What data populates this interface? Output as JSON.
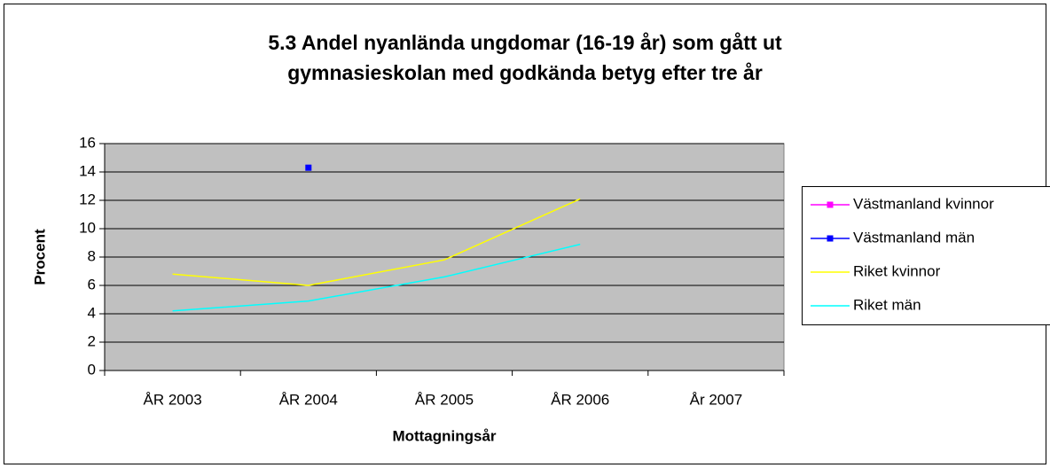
{
  "chart_data": {
    "type": "line",
    "title": [
      "5.3 Andel nyanlända ungdomar (16-19 år) som gått ut",
      "gymnasieskolan med godkända betyg efter tre år"
    ],
    "x_label": "Mottagningsår",
    "y_label": "Procent",
    "categories": [
      "ÅR 2003",
      "ÅR 2004",
      "ÅR 2005",
      "ÅR 2006",
      "År 2007"
    ],
    "series": [
      {
        "name": "Västmanland kvinnor",
        "color": "#ff00ff",
        "marker": "square",
        "values": [
          null,
          null,
          null,
          null,
          null
        ]
      },
      {
        "name": "Västmanland män",
        "color": "#0000ff",
        "marker": "square",
        "values": [
          null,
          14.3,
          null,
          null,
          null
        ]
      },
      {
        "name": "Riket kvinnor",
        "color": "#ffff00",
        "values": [
          6.8,
          6.0,
          7.8,
          12.1,
          null
        ]
      },
      {
        "name": "Riket män",
        "color": "#00ffff",
        "values": [
          4.2,
          4.9,
          6.6,
          8.9,
          null
        ]
      }
    ],
    "ylim": [
      0,
      16
    ],
    "yticks": [
      0,
      2,
      4,
      6,
      8,
      10,
      12,
      14,
      16
    ],
    "grid": true,
    "legend": "right"
  }
}
